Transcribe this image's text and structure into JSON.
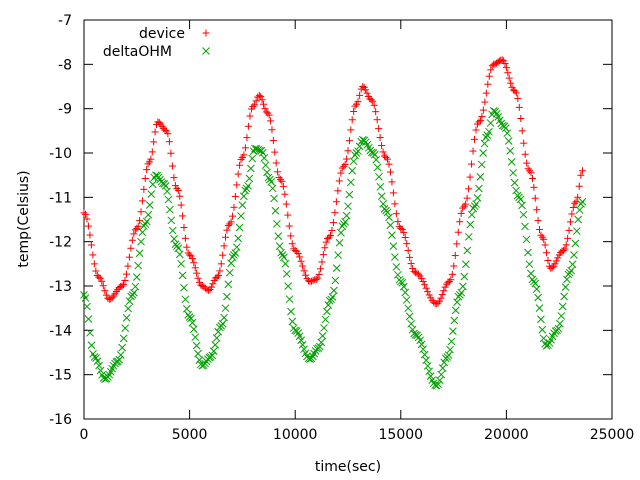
{
  "chart_data": {
    "type": "scatter",
    "xlabel": "time(sec)",
    "ylabel": "temp(Celsius)",
    "xlim": [
      0,
      25000
    ],
    "ylim": [
      -16,
      -7
    ],
    "x_ticks": [
      "0",
      "5000",
      "10000",
      "15000",
      "20000",
      "25000"
    ],
    "y_ticks": [
      "-16",
      "-15",
      "-14",
      "-13",
      "-12",
      "-11",
      "-10",
      "-9",
      "-8",
      "-7"
    ],
    "grid": false,
    "legend_position": "top-left",
    "series": [
      {
        "name": "device",
        "marker": "+",
        "color": "#ff0000",
        "x": [
          0,
          700,
          1200,
          1800,
          2500,
          3100,
          3500,
          3900,
          4400,
          5000,
          5600,
          5900,
          6300,
          6900,
          7500,
          8000,
          8300,
          8700,
          9300,
          10000,
          10700,
          11000,
          11600,
          12300,
          12900,
          13200,
          13600,
          14300,
          15000,
          15700,
          16700,
          17300,
          18000,
          18700,
          19400,
          19800,
          20400,
          21100,
          21700,
          22100,
          22700,
          23300,
          23600
        ],
        "y": [
          -11.35,
          -12.8,
          -13.3,
          -13.0,
          -11.7,
          -10.2,
          -9.3,
          -9.5,
          -10.8,
          -12.3,
          -13.0,
          -13.1,
          -12.8,
          -11.6,
          -10.1,
          -8.95,
          -8.7,
          -9.1,
          -10.6,
          -12.2,
          -12.9,
          -12.85,
          -11.9,
          -10.3,
          -8.9,
          -8.5,
          -8.8,
          -10.1,
          -11.7,
          -12.7,
          -13.4,
          -12.9,
          -11.2,
          -9.3,
          -8.0,
          -7.9,
          -8.6,
          -10.4,
          -11.9,
          -12.6,
          -12.2,
          -11.1,
          -10.4
        ]
      },
      {
        "name": "deltaOHM",
        "marker": "x",
        "color": "#00a000",
        "x": [
          0,
          500,
          1000,
          1600,
          2300,
          2900,
          3400,
          3800,
          4400,
          5000,
          5600,
          6000,
          6500,
          7100,
          7700,
          8100,
          8400,
          8800,
          9400,
          10000,
          10700,
          11100,
          11700,
          12300,
          12900,
          13200,
          13700,
          14300,
          15000,
          15700,
          16700,
          17200,
          17800,
          18500,
          19100,
          19400,
          19900,
          20600,
          21300,
          21900,
          22400,
          23000,
          23600
        ],
        "y": [
          -13.2,
          -14.6,
          -15.1,
          -14.7,
          -13.2,
          -11.6,
          -10.5,
          -10.7,
          -12.1,
          -13.7,
          -14.8,
          -14.6,
          -13.9,
          -12.3,
          -10.8,
          -9.9,
          -9.95,
          -10.6,
          -12.3,
          -14.0,
          -14.65,
          -14.4,
          -13.3,
          -11.6,
          -10.0,
          -9.7,
          -10.0,
          -11.3,
          -12.9,
          -14.1,
          -15.25,
          -14.6,
          -13.2,
          -11.2,
          -9.6,
          -9.05,
          -9.4,
          -11.0,
          -12.9,
          -14.35,
          -14.0,
          -12.7,
          -11.1
        ]
      }
    ]
  }
}
